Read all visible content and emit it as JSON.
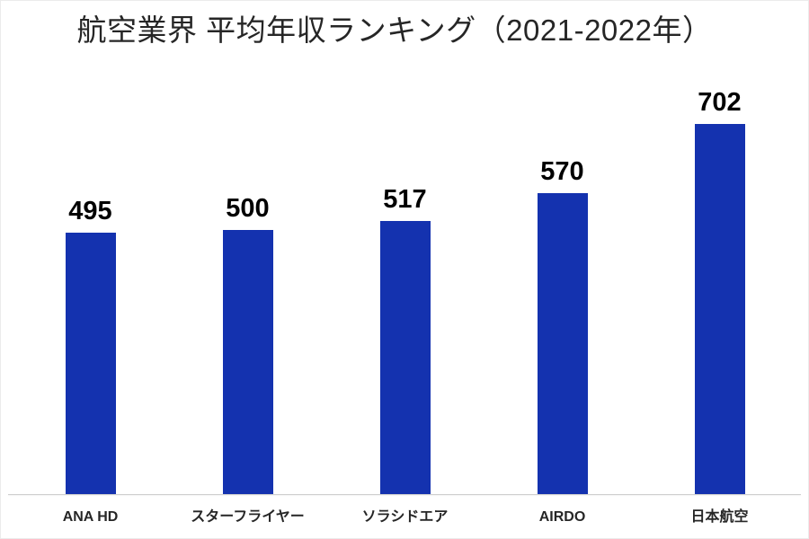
{
  "chart": {
    "title": "航空業界 平均年収ランキング（2021-2022年）"
  },
  "chart_data": {
    "type": "bar",
    "title": "航空業界 平均年収ランキング（2021-2022年）",
    "categories": [
      "ANA HD",
      "スターフライヤー",
      "ソラシドエア",
      "AIRDO",
      "日本航空"
    ],
    "values": [
      495,
      500,
      517,
      570,
      702
    ],
    "data_labels_shown": true,
    "xlabel": "",
    "ylabel": "",
    "ylim": [
      0,
      800
    ],
    "grid": false,
    "legend": false,
    "orientation": "vertical",
    "colors": {
      "bar": "#1432af",
      "value_label": "#000000",
      "category_label": "#262626",
      "title": "#262626",
      "axis_line": "#cfcfcf",
      "background": "#ffffff"
    }
  }
}
